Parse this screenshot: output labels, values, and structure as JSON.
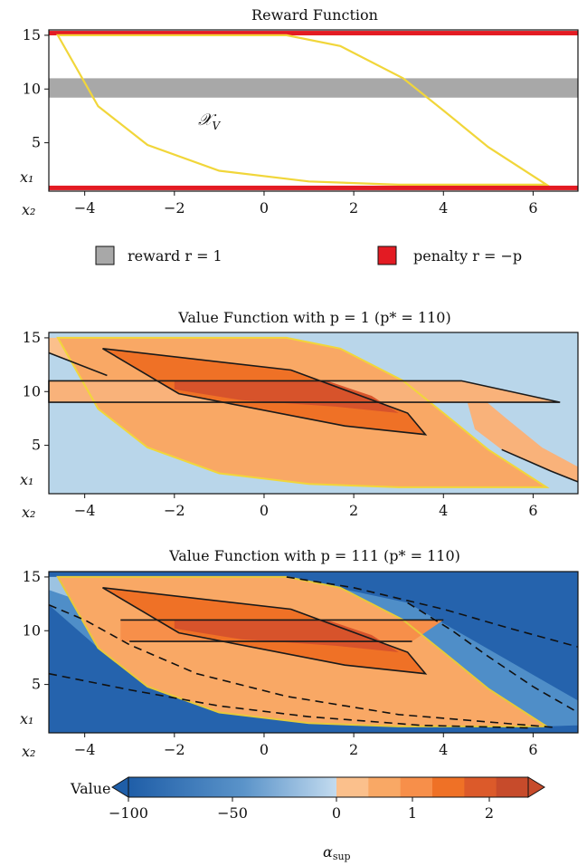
{
  "panels": [
    {
      "id": "reward",
      "title": "Reward Function",
      "region_label": "𝒳",
      "region_sub": "V",
      "reward_band": [
        9.2,
        11.0
      ],
      "penalty_lines": [
        15.2,
        0.8
      ],
      "reward_color": "#a8a8a8",
      "penalty_color": "#e31b23",
      "region_color": "#f1d63a",
      "legend": [
        {
          "label": "reward r = 1",
          "color": "#a8a8a8"
        },
        {
          "label": "penalty r = −p",
          "color": "#e31b23"
        }
      ]
    },
    {
      "id": "value-p1",
      "title": "Value Function with p = 1 (p* = 110)",
      "background": "#b9d6ea"
    },
    {
      "id": "value-p111",
      "title": "Value Function with p = 111 (p* = 110)",
      "background": "#2563ad"
    }
  ],
  "axes": {
    "xlabel": "x₂",
    "ylabel": "x₁",
    "x_ticks": [
      "−4",
      "−2",
      "0",
      "2",
      "4",
      "6"
    ],
    "x_values": [
      -4,
      -2,
      0,
      2,
      4,
      6
    ],
    "y_ticks": [
      "15",
      "10",
      "5"
    ],
    "y_values": [
      15,
      10,
      5
    ],
    "xlim": [
      -4.8,
      7.0
    ],
    "ylim": [
      0.5,
      15.5
    ]
  },
  "colorbar": {
    "label": "Value",
    "xlabel": "α",
    "xlabel_sub": "sup",
    "ticks": [
      "−100",
      "−50",
      "0",
      "1",
      "2"
    ],
    "negative_colors": [
      "#1f5ea8",
      "#6a9fd0",
      "#bcd6ec"
    ],
    "positive_colors": [
      "#fbc08c",
      "#f9a865",
      "#f78f4a",
      "#ef7126",
      "#dc5a2a",
      "#c74b2b"
    ]
  },
  "chart_data": [
    {
      "type": "heatmap",
      "title": "Reward Function",
      "xlabel": "x₂",
      "ylabel": "x₁",
      "xlim": [
        -4.8,
        7.0
      ],
      "ylim": [
        0.5,
        15.5
      ],
      "reward_band_x1": [
        9.2,
        11.0
      ],
      "penalty_x1": [
        0.8,
        15.2
      ],
      "legend": [
        "reward r = 1",
        "penalty r = −p"
      ]
    },
    {
      "type": "heatmap",
      "title": "Value Function with p = 1 (p* = 110)",
      "xlabel": "x₂",
      "ylabel": "x₁",
      "xlim": [
        -4.8,
        7.0
      ],
      "ylim": [
        0.5,
        15.5
      ],
      "colorbar_range": [
        0,
        2.5
      ]
    },
    {
      "type": "heatmap",
      "title": "Value Function with p = 111 (p* = 110)",
      "xlabel": "x₂",
      "ylabel": "x₁",
      "xlim": [
        -4.8,
        7.0
      ],
      "ylim": [
        0.5,
        15.5
      ],
      "colorbar_range": [
        -110,
        2.5
      ]
    }
  ]
}
